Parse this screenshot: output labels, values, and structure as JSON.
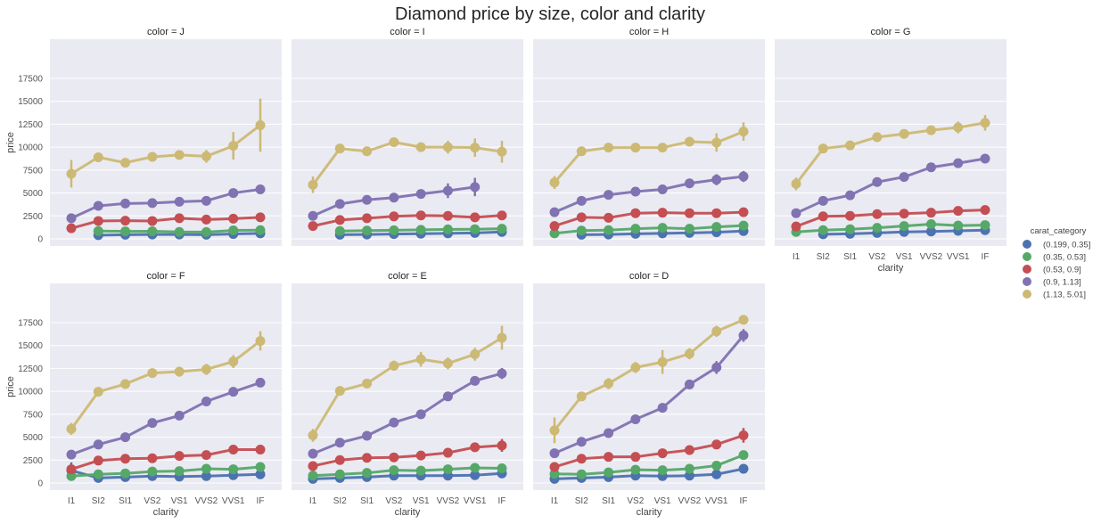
{
  "chart_data": {
    "type": "line",
    "subtype": "pointplot-facet-grid",
    "title": "Diamond price by size, color and clarity",
    "xlabel": "clarity",
    "ylabel": "price",
    "ylim": [
      -700,
      19000
    ],
    "yticks": [
      0,
      2500,
      5000,
      7500,
      10000,
      12500,
      15000,
      17500
    ],
    "ytick_labels": [
      "0",
      "2500",
      "5000",
      "7500",
      "10000",
      "12500",
      "15000",
      "17500"
    ],
    "categories": [
      "I1",
      "SI2",
      "SI1",
      "VS2",
      "VS1",
      "VVS2",
      "VVS1",
      "IF"
    ],
    "grid": true,
    "legend": {
      "title": "carat_category",
      "placement": "right",
      "entries": [
        {
          "label": "(0.199, 0.35]",
          "color": "#4c72b0"
        },
        {
          "label": "(0.35, 0.53]",
          "color": "#55a868"
        },
        {
          "label": "(0.53, 0.9]",
          "color": "#c44e52"
        },
        {
          "label": "(0.9, 1.13]",
          "color": "#8172b2"
        },
        {
          "label": "(1.13, 5.01]",
          "color": "#ccb974"
        }
      ]
    },
    "facets": [
      {
        "title": "color = J",
        "series": [
          {
            "name": "(0.199, 0.35]",
            "values": [
              null,
              400,
              450,
              480,
              470,
              450,
              530,
              600
            ],
            "ci": [
              null,
              150,
              150,
              150,
              150,
              150,
              150,
              150
            ]
          },
          {
            "name": "(0.35, 0.53]",
            "values": [
              null,
              850,
              820,
              830,
              750,
              740,
              920,
              950
            ],
            "ci": [
              null,
              200,
              200,
              200,
              200,
              200,
              200,
              200
            ]
          },
          {
            "name": "(0.53, 0.9]",
            "values": [
              1150,
              1950,
              1980,
              1950,
              2250,
              2100,
              2200,
              2350
            ],
            "ci": [
              250,
              150,
              150,
              150,
              200,
              200,
              250,
              450
            ]
          },
          {
            "name": "(0.9, 1.13]",
            "values": [
              2250,
              3600,
              3850,
              3900,
              4050,
              4150,
              5000,
              5400
            ],
            "ci": [
              200,
              200,
              200,
              200,
              250,
              400,
              500,
              300
            ]
          },
          {
            "name": "(1.13, 5.01]",
            "values": [
              7100,
              8900,
              8300,
              8950,
              9150,
              9000,
              10150,
              12400
            ],
            "ci": [
              1500,
              450,
              300,
              400,
              450,
              700,
              1500,
              2900
            ]
          }
        ]
      },
      {
        "title": "color = I",
        "series": [
          {
            "name": "(0.199, 0.35]",
            "values": [
              null,
              450,
              480,
              520,
              560,
              600,
              650,
              750
            ],
            "ci": [
              null,
              150,
              150,
              150,
              150,
              150,
              150,
              150
            ]
          },
          {
            "name": "(0.35, 0.53]",
            "values": [
              null,
              850,
              900,
              930,
              980,
              1030,
              1050,
              1100
            ],
            "ci": [
              null,
              200,
              200,
              200,
              200,
              200,
              200,
              200
            ]
          },
          {
            "name": "(0.53, 0.9]",
            "values": [
              1400,
              2050,
              2250,
              2450,
              2550,
              2500,
              2350,
              2550
            ],
            "ci": [
              200,
              150,
              150,
              150,
              150,
              150,
              150,
              250
            ]
          },
          {
            "name": "(0.9, 1.13]",
            "values": [
              2500,
              3800,
              4250,
              4500,
              4900,
              5250,
              5650,
              null
            ],
            "ci": [
              200,
              200,
              200,
              250,
              300,
              800,
              1000,
              null
            ]
          },
          {
            "name": "(1.13, 5.01]",
            "values": [
              5900,
              9850,
              9550,
              10550,
              10000,
              10000,
              9950,
              9500
            ],
            "ci": [
              900,
              350,
              350,
              350,
              400,
              700,
              1000,
              1200
            ]
          }
        ]
      },
      {
        "title": "color = H",
        "series": [
          {
            "name": "(0.199, 0.35]",
            "values": [
              null,
              450,
              480,
              550,
              600,
              650,
              720,
              850
            ],
            "ci": [
              null,
              150,
              150,
              150,
              150,
              150,
              150,
              150
            ]
          },
          {
            "name": "(0.35, 0.53]",
            "values": [
              600,
              900,
              950,
              1100,
              1200,
              1100,
              1300,
              1450
            ],
            "ci": [
              200,
              200,
              200,
              200,
              200,
              200,
              200,
              200
            ]
          },
          {
            "name": "(0.53, 0.9]",
            "values": [
              1400,
              2350,
              2300,
              2800,
              2850,
              2800,
              2800,
              2900
            ],
            "ci": [
              200,
              150,
              150,
              150,
              150,
              150,
              150,
              200
            ]
          },
          {
            "name": "(0.9, 1.13]",
            "values": [
              2900,
              4150,
              4800,
              5150,
              5400,
              6050,
              6450,
              6800
            ],
            "ci": [
              250,
              250,
              250,
              250,
              300,
              400,
              600,
              600
            ]
          },
          {
            "name": "(1.13, 5.01]",
            "values": [
              6150,
              9550,
              9950,
              9950,
              9950,
              10600,
              10500,
              11700
            ],
            "ci": [
              700,
              350,
              300,
              350,
              350,
              500,
              1000,
              1000
            ]
          }
        ]
      },
      {
        "title": "color = G",
        "series": [
          {
            "name": "(0.199, 0.35]",
            "values": [
              null,
              500,
              550,
              650,
              750,
              800,
              880,
              950
            ],
            "ci": [
              null,
              150,
              150,
              150,
              150,
              150,
              150,
              150
            ]
          },
          {
            "name": "(0.35, 0.53]",
            "values": [
              750,
              950,
              1050,
              1200,
              1400,
              1600,
              1450,
              1500
            ],
            "ci": [
              200,
              200,
              200,
              200,
              200,
              200,
              200,
              200
            ]
          },
          {
            "name": "(0.53, 0.9]",
            "values": [
              1350,
              2450,
              2500,
              2700,
              2750,
              2850,
              3050,
              3150
            ],
            "ci": [
              200,
              150,
              150,
              150,
              150,
              150,
              150,
              200
            ]
          },
          {
            "name": "(0.9, 1.13]",
            "values": [
              2800,
              4150,
              4750,
              6200,
              6750,
              7800,
              8250,
              8750
            ],
            "ci": [
              250,
              250,
              250,
              250,
              250,
              250,
              300,
              300
            ]
          },
          {
            "name": "(1.13, 5.01]",
            "values": [
              6000,
              9850,
              10200,
              11100,
              11450,
              11850,
              12150,
              12650
            ],
            "ci": [
              700,
              500,
              400,
              350,
              350,
              450,
              650,
              850
            ]
          }
        ]
      },
      {
        "title": "color = F",
        "series": [
          {
            "name": "(0.199, 0.35]",
            "values": [
              1350,
              550,
              650,
              750,
              700,
              750,
              850,
              950
            ],
            "ci": [
              900,
              150,
              150,
              150,
              150,
              150,
              150,
              150
            ]
          },
          {
            "name": "(0.35, 0.53]",
            "values": [
              750,
              950,
              1050,
              1250,
              1300,
              1550,
              1500,
              1750
            ],
            "ci": [
              200,
              200,
              200,
              200,
              200,
              200,
              200,
              200
            ]
          },
          {
            "name": "(0.53, 0.9]",
            "values": [
              1500,
              2450,
              2650,
              2700,
              2950,
              3050,
              3650,
              3650
            ],
            "ci": [
              400,
              150,
              150,
              150,
              150,
              150,
              200,
              500
            ]
          },
          {
            "name": "(0.9, 1.13]",
            "values": [
              3100,
              4200,
              5000,
              6550,
              7350,
              8900,
              9950,
              10950
            ],
            "ci": [
              200,
              200,
              250,
              250,
              250,
              250,
              300,
              300
            ]
          },
          {
            "name": "(1.13, 5.01]",
            "values": [
              5900,
              9950,
              10800,
              12000,
              12150,
              12400,
              13250,
              15500
            ],
            "ci": [
              650,
              500,
              400,
              500,
              550,
              600,
              700,
              1050
            ]
          }
        ]
      },
      {
        "title": "color = E",
        "series": [
          {
            "name": "(0.199, 0.35]",
            "values": [
              450,
              550,
              650,
              800,
              800,
              800,
              850,
              1050
            ],
            "ci": [
              150,
              150,
              150,
              150,
              150,
              150,
              150,
              150
            ]
          },
          {
            "name": "(0.35, 0.53]",
            "values": [
              800,
              950,
              1100,
              1400,
              1350,
              1500,
              1650,
              1600
            ],
            "ci": [
              200,
              200,
              200,
              200,
              200,
              200,
              200,
              200
            ]
          },
          {
            "name": "(0.53, 0.9]",
            "values": [
              1850,
              2500,
              2750,
              2800,
              3000,
              3300,
              3900,
              4100
            ],
            "ci": [
              200,
              150,
              150,
              150,
              150,
              150,
              250,
              700
            ]
          },
          {
            "name": "(0.9, 1.13]",
            "values": [
              3200,
              4400,
              5150,
              6600,
              7500,
              9450,
              11150,
              11950
            ],
            "ci": [
              200,
              200,
              250,
              250,
              250,
              300,
              450,
              600
            ]
          },
          {
            "name": "(1.13, 5.01]",
            "values": [
              5200,
              10050,
              10850,
              12800,
              13500,
              13050,
              14050,
              15850
            ],
            "ci": [
              700,
              500,
              400,
              550,
              800,
              650,
              700,
              1300
            ]
          }
        ]
      },
      {
        "title": "color = D",
        "series": [
          {
            "name": "(0.199, 0.35]",
            "values": [
              450,
              550,
              650,
              800,
              750,
              800,
              950,
              1550
            ],
            "ci": [
              150,
              150,
              150,
              150,
              150,
              150,
              150,
              200
            ]
          },
          {
            "name": "(0.35, 0.53]",
            "values": [
              1000,
              950,
              1150,
              1450,
              1400,
              1550,
              1900,
              3050
            ],
            "ci": [
              200,
              200,
              200,
              200,
              200,
              200,
              200,
              450
            ]
          },
          {
            "name": "(0.53, 0.9]",
            "values": [
              1750,
              2650,
              2850,
              2850,
              3250,
              3600,
              4200,
              5200
            ],
            "ci": [
              200,
              150,
              150,
              150,
              200,
              200,
              300,
              800
            ]
          },
          {
            "name": "(0.9, 1.13]",
            "values": [
              3250,
              4500,
              5450,
              6950,
              8200,
              10750,
              12600,
              16100
            ],
            "ci": [
              250,
              250,
              250,
              250,
              300,
              350,
              700,
              700
            ]
          },
          {
            "name": "(1.13, 5.01]",
            "values": [
              5750,
              9450,
              10850,
              12600,
              13200,
              14100,
              16550,
              17800
            ],
            "ci": [
              1400,
              500,
              600,
              600,
              1300,
              600,
              600,
              300
            ]
          }
        ]
      }
    ]
  }
}
